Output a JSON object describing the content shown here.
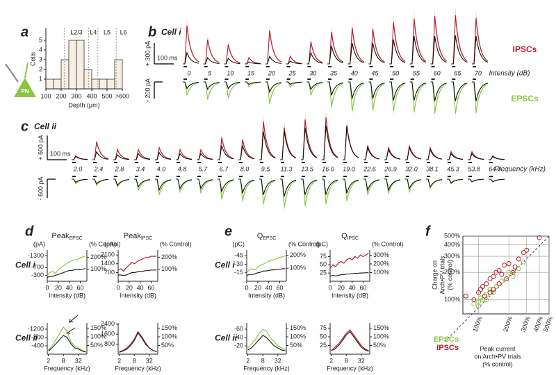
{
  "chart_data": [
    {
      "type": "histogram",
      "panel": "a",
      "icon_label": "PN",
      "ylabel": "Cells",
      "xlabel": "Depth (μm)",
      "bins": [
        100,
        150,
        200,
        250,
        300,
        350,
        400,
        450,
        500,
        550,
        600
      ],
      "values": [
        1,
        1,
        3,
        5,
        5,
        2,
        1,
        1,
        1,
        3
      ],
      "color": "#f6efe2",
      "xlim": [
        100,
        600
      ],
      "ylim": [
        0,
        5
      ],
      "yticks": [
        1,
        2,
        3,
        4,
        5
      ],
      "xticks": [
        100,
        200,
        300,
        400,
        500,
        {
          "value": 600,
          "label": ">600"
        }
      ],
      "layers": [
        "L2/3",
        "L4",
        "L5",
        "L6"
      ],
      "layer_boundaries": [
        220,
        380,
        440,
        560
      ]
    },
    {
      "type": "traces",
      "panel": "b",
      "title": "Cell i",
      "xlabel": "Intensity (dB)",
      "x": [
        0,
        5,
        10,
        15,
        20,
        25,
        30,
        35,
        40,
        45,
        50,
        55,
        60,
        65,
        70
      ],
      "scale_bars": [
        "+ 300 pA",
        "100 ms",
        "- 200 pA"
      ],
      "series": [
        {
          "name": "IPSCs",
          "color": "#b01c2e",
          "values": [
            550,
            350,
            280,
            90,
            480,
            110,
            320,
            460,
            520,
            500,
            600,
            650,
            690,
            700,
            660
          ]
        },
        {
          "color": "#111111",
          "values": [
            160,
            90,
            80,
            30,
            110,
            40,
            160,
            260,
            300,
            300,
            350,
            400,
            400,
            410,
            400
          ]
        },
        {
          "name": "EPSCs",
          "color": "#8cc63f",
          "values": [
            -160,
            -210,
            -190,
            -60,
            -260,
            -60,
            -160,
            -300,
            -350,
            -340,
            -350,
            -360,
            -380,
            -380,
            -370
          ]
        },
        {
          "color": "#111111",
          "values": [
            -80,
            -90,
            -80,
            -30,
            -120,
            -30,
            -90,
            -160,
            -200,
            -200,
            -220,
            -220,
            -230,
            -230,
            -230
          ]
        }
      ]
    },
    {
      "type": "traces",
      "panel": "c",
      "title": "Cell ii",
      "xlabel": "Frequency (kHz)",
      "categories": [
        "2.0",
        "2.4",
        "2.8",
        "3.4",
        "4.0",
        "4.8",
        "5.7",
        "6.7",
        "8.0",
        "9.5",
        "11.3",
        "13.5",
        "16.0",
        "19.0",
        "22.6",
        "26.9",
        "32.0",
        "38.1",
        "45.3",
        "53.8",
        "64.0"
      ],
      "scale_bars": [
        "+ 600 pA",
        "100 ms",
        "- 600 pA"
      ],
      "series": [
        {
          "color": "#b01c2e",
          "values": [
            100,
            450,
            250,
            250,
            300,
            250,
            250,
            550,
            500,
            950,
            800,
            1000,
            1050,
            850,
            350,
            300,
            350,
            300,
            200,
            200,
            100
          ]
        },
        {
          "color": "#111111",
          "values": [
            80,
            200,
            120,
            150,
            180,
            150,
            150,
            350,
            350,
            700,
            700,
            800,
            850,
            850,
            300,
            250,
            300,
            250,
            150,
            150,
            80
          ]
        },
        {
          "color": "#8cc63f",
          "values": [
            -150,
            -200,
            -250,
            -350,
            -500,
            -400,
            -450,
            -650,
            -700,
            -800,
            -900,
            -850,
            -800,
            -700,
            -500,
            -450,
            -400,
            -300,
            -150,
            -100,
            -100
          ]
        },
        {
          "color": "#111111",
          "values": [
            -100,
            -150,
            -200,
            -250,
            -350,
            -300,
            -300,
            -400,
            -450,
            -500,
            -550,
            -500,
            -500,
            -450,
            -350,
            -350,
            -300,
            -250,
            -120,
            -80,
            -80
          ]
        }
      ]
    },
    {
      "type": "line",
      "panel": "d",
      "row_label": "Cell i",
      "title": "Peak",
      "title_sub": "EPSC",
      "ylabel": "(pA)",
      "y2label": "(% Control)",
      "xlabel": "Intensity (dB)",
      "x": [
        0,
        5,
        10,
        15,
        20,
        25,
        30,
        35,
        40,
        45,
        50,
        55,
        60,
        65,
        70
      ],
      "xlim": [
        0,
        72
      ],
      "xticks": [
        0,
        20,
        40,
        60
      ],
      "ylim": [
        0,
        -1600
      ],
      "yticks": [
        -1300,
        -700,
        -300
      ],
      "y2lim": [
        0,
        260
      ],
      "y2ticks": [
        {
          "value": 200,
          "label": "200%"
        },
        {
          "value": 100,
          "label": "100%"
        }
      ],
      "series": [
        {
          "color": "#8cc63f",
          "values": [
            -300,
            -450,
            -500,
            -400,
            -600,
            -700,
            -800,
            -900,
            -1000,
            -1050,
            -1100,
            -1100,
            -1200,
            -1250,
            -1300
          ]
        },
        {
          "color": "#222222",
          "values": [
            -200,
            -250,
            -250,
            -300,
            -350,
            -400,
            -450,
            -500,
            -550,
            -550,
            -600,
            -600,
            -600,
            -620,
            -650
          ]
        }
      ]
    },
    {
      "type": "line",
      "title": "Peak",
      "title_sub": "IPSC",
      "ylabel": "(pA)",
      "y2label": "(% Control)",
      "xlabel": "Intensity (dB)",
      "x": [
        0,
        5,
        10,
        15,
        20,
        25,
        30,
        35,
        40,
        45,
        50,
        55,
        60,
        65,
        70
      ],
      "xlim": [
        0,
        72
      ],
      "xticks": [
        0,
        20,
        40,
        60
      ],
      "ylim": [
        0,
        2500
      ],
      "yticks": [
        2100,
        1400,
        700
      ],
      "y2lim": [
        0,
        260
      ],
      "y2ticks": [
        {
          "value": 200,
          "label": "200%"
        },
        {
          "value": 100,
          "label": "100%"
        }
      ],
      "series": [
        {
          "color": "#b01c2e",
          "values": [
            900,
            1000,
            800,
            1100,
            1300,
            1500,
            1400,
            1600,
            1700,
            1800,
            1900,
            1900,
            2000,
            2000,
            2000
          ]
        },
        {
          "color": "#222222",
          "values": [
            500,
            500,
            450,
            500,
            600,
            700,
            700,
            750,
            800,
            800,
            850,
            850,
            900,
            900,
            900
          ]
        }
      ]
    },
    {
      "type": "line",
      "row_label": "Cell ii",
      "xlabel": "Frequency (kHz)",
      "xscale": "log",
      "x": [
        2,
        2.8,
        4,
        5.7,
        8,
        11.3,
        16,
        22.6,
        32,
        45.3,
        64
      ],
      "xlim": [
        1.8,
        70
      ],
      "xticks": [
        2,
        8,
        32
      ],
      "ylim": [
        0,
        -1500
      ],
      "yticks": [
        -1200,
        -800,
        -400
      ],
      "y2lim": [
        0,
        180
      ],
      "y2ticks": [
        {
          "value": 150,
          "label": "150%"
        },
        {
          "value": 100,
          "label": "100%"
        },
        {
          "value": 50,
          "label": "50%"
        }
      ],
      "series": [
        {
          "color": "#8cc63f",
          "values": [
            -200,
            -400,
            -700,
            -1000,
            -1300,
            -1100,
            -600,
            -400,
            -300,
            -200,
            -100
          ]
        },
        {
          "color": "#222222",
          "values": [
            -150,
            -300,
            -500,
            -700,
            -900,
            -800,
            -500,
            -300,
            -250,
            -150,
            -100
          ]
        }
      ]
    },
    {
      "type": "line",
      "xlabel": "Frequency (kHz)",
      "xscale": "log",
      "x": [
        2,
        2.8,
        4,
        5.7,
        8,
        11.3,
        16,
        22.6,
        32,
        45.3,
        64
      ],
      "xlim": [
        1.8,
        70
      ],
      "xticks": [
        2,
        8,
        32
      ],
      "ylim": [
        0,
        2500
      ],
      "yticks": [
        2400,
        1600,
        800
      ],
      "y2lim": [
        0,
        180
      ],
      "y2ticks": [
        {
          "value": 150,
          "label": "150%"
        },
        {
          "value": 100,
          "label": "100%"
        },
        {
          "value": 50,
          "label": "50%"
        }
      ],
      "series": [
        {
          "color": "#b01c2e",
          "values": [
            200,
            300,
            500,
            800,
            1200,
            1800,
            1400,
            900,
            500,
            300,
            200
          ]
        },
        {
          "color": "#222222",
          "values": [
            150,
            250,
            400,
            700,
            1100,
            1700,
            1300,
            800,
            500,
            300,
            200
          ]
        }
      ]
    },
    {
      "type": "line",
      "panel": "e",
      "row_label": "Cell i",
      "title": "Q",
      "title_sub": "EPSC",
      "ylabel": "(pC)",
      "y2label": "(% Control)",
      "xlabel": "Intensity (dB)",
      "x": [
        0,
        5,
        10,
        15,
        20,
        25,
        30,
        35,
        40,
        45,
        50,
        55,
        60,
        65,
        70
      ],
      "xlim": [
        0,
        72
      ],
      "xticks": [
        0,
        20,
        40,
        60
      ],
      "ylim": [
        0,
        -55
      ],
      "yticks": [
        -45,
        -30,
        -15
      ],
      "y2lim": [
        0,
        240
      ],
      "y2ticks": [
        {
          "value": 200,
          "label": "200%"
        },
        {
          "value": 100,
          "label": "100%"
        }
      ],
      "series": [
        {
          "color": "#8cc63f",
          "values": [
            -15,
            -20,
            -22,
            -20,
            -25,
            -28,
            -30,
            -33,
            -35,
            -37,
            -38,
            -40,
            -42,
            -43,
            -45
          ]
        },
        {
          "color": "#222222",
          "values": [
            -10,
            -12,
            -12,
            -13,
            -15,
            -16,
            -18,
            -18,
            -19,
            -20,
            -20,
            -21,
            -21,
            -22,
            -22
          ]
        }
      ]
    },
    {
      "type": "line",
      "title": "Q",
      "title_sub": "IPSC",
      "ylabel": "(pC)",
      "y2label": "(% Control)",
      "xlabel": "Intensity (dB)",
      "x": [
        0,
        5,
        10,
        15,
        20,
        25,
        30,
        35,
        40,
        45,
        50,
        55,
        60,
        65,
        70
      ],
      "xlim": [
        0,
        72
      ],
      "xticks": [
        0,
        20,
        40,
        60
      ],
      "ylim": [
        0,
        95
      ],
      "yticks": [
        75,
        50,
        25
      ],
      "y2lim": [
        0,
        360
      ],
      "y2ticks": [
        {
          "value": 300,
          "label": "300%"
        },
        {
          "value": 200,
          "label": "200%"
        },
        {
          "value": 100,
          "label": "100%"
        }
      ],
      "series": [
        {
          "color": "#b01c2e",
          "values": [
            40,
            50,
            45,
            55,
            60,
            55,
            65,
            70,
            65,
            75,
            70,
            80,
            75,
            80,
            85
          ]
        },
        {
          "color": "#222222",
          "values": [
            15,
            18,
            16,
            18,
            20,
            20,
            22,
            22,
            23,
            24,
            24,
            25,
            25,
            26,
            26
          ]
        }
      ]
    },
    {
      "type": "line",
      "row_label": "Cell ii",
      "xlabel": "Frequency (kHz)",
      "xscale": "log",
      "x": [
        2,
        2.8,
        4,
        5.7,
        8,
        11.3,
        16,
        22.6,
        32,
        45.3,
        64
      ],
      "xlim": [
        1.8,
        70
      ],
      "xticks": [
        2,
        8,
        32
      ],
      "ylim": [
        0,
        -75
      ],
      "yticks": [
        -60,
        -40,
        -20
      ],
      "y2lim": [
        0,
        180
      ],
      "y2ticks": [
        {
          "value": 150,
          "label": "150%"
        },
        {
          "value": 100,
          "label": "100%"
        },
        {
          "value": 50,
          "label": "50%"
        }
      ],
      "series": [
        {
          "color": "#8cc63f",
          "values": [
            -15,
            -25,
            -35,
            -50,
            -60,
            -55,
            -40,
            -30,
            -20,
            -15,
            -10
          ]
        },
        {
          "color": "#222222",
          "values": [
            -10,
            -15,
            -25,
            -35,
            -45,
            -40,
            -30,
            -20,
            -15,
            -10,
            -8
          ]
        }
      ]
    },
    {
      "type": "line",
      "xlabel": "Frequency (kHz)",
      "xscale": "log",
      "x": [
        2,
        2.8,
        4,
        5.7,
        8,
        11.3,
        16,
        22.6,
        32,
        45.3,
        64
      ],
      "xlim": [
        1.8,
        70
      ],
      "xticks": [
        2,
        8,
        32
      ],
      "ylim": [
        0,
        90
      ],
      "yticks": [
        75,
        50,
        25
      ],
      "y2lim": [
        0,
        180
      ],
      "y2ticks": [
        {
          "value": 150,
          "label": "150%"
        },
        {
          "value": 100,
          "label": "100%"
        },
        {
          "value": 50,
          "label": "50%"
        }
      ],
      "series": [
        {
          "color": "#b01c2e",
          "values": [
            10,
            20,
            30,
            45,
            60,
            70,
            55,
            40,
            25,
            15,
            10
          ]
        },
        {
          "color": "#222222",
          "values": [
            10,
            15,
            25,
            40,
            55,
            65,
            50,
            35,
            20,
            12,
            8
          ]
        }
      ]
    },
    {
      "type": "scatter",
      "panel": "f",
      "xscale": "log",
      "yscale": "log",
      "grid": true,
      "xlim": [
        70,
        500
      ],
      "ylim": [
        70,
        500
      ],
      "xticks": [
        {
          "value": 100,
          "label": "100%"
        },
        {
          "value": 200,
          "label": "200%"
        },
        {
          "value": 300,
          "label": "300%"
        },
        {
          "value": 400,
          "label": "400%"
        },
        {
          "value": 500,
          "label": "500%"
        }
      ],
      "yticks": [
        {
          "value": 100,
          "label": "100%"
        },
        {
          "value": 200,
          "label": "200%"
        },
        {
          "value": 300,
          "label": "300%"
        },
        {
          "value": 400,
          "label": "400%"
        },
        {
          "value": 500,
          "label": "500%"
        }
      ],
      "ylabel": [
        "Charge on",
        "Arch•PV trials",
        "(% control)"
      ],
      "xlabel": [
        "Peak current",
        "on Arch•PV trials",
        "(% control)"
      ],
      "series": [
        {
          "name": "EPSCs",
          "color": "#8cc63f",
          "x": [
            90,
            100,
            105,
            110,
            120,
            130,
            140,
            150,
            170,
            190,
            200,
            220,
            250,
            280,
            120,
            100
          ],
          "values": [
            90,
            95,
            105,
            100,
            115,
            130,
            120,
            140,
            160,
            170,
            200,
            180,
            220,
            260,
            100,
            85
          ]
        },
        {
          "name": "IPSCs",
          "color": "#b01c2e",
          "x": [
            75,
            90,
            100,
            105,
            110,
            120,
            130,
            140,
            150,
            160,
            170,
            180,
            200,
            220,
            250,
            280,
            300,
            400,
            130,
            115,
            160,
            190,
            230,
            140
          ],
          "values": [
            110,
            100,
            120,
            130,
            140,
            150,
            170,
            180,
            200,
            210,
            190,
            240,
            250,
            200,
            280,
            330,
            350,
            480,
            120,
            110,
            150,
            170,
            230,
            130
          ]
        }
      ]
    }
  ]
}
